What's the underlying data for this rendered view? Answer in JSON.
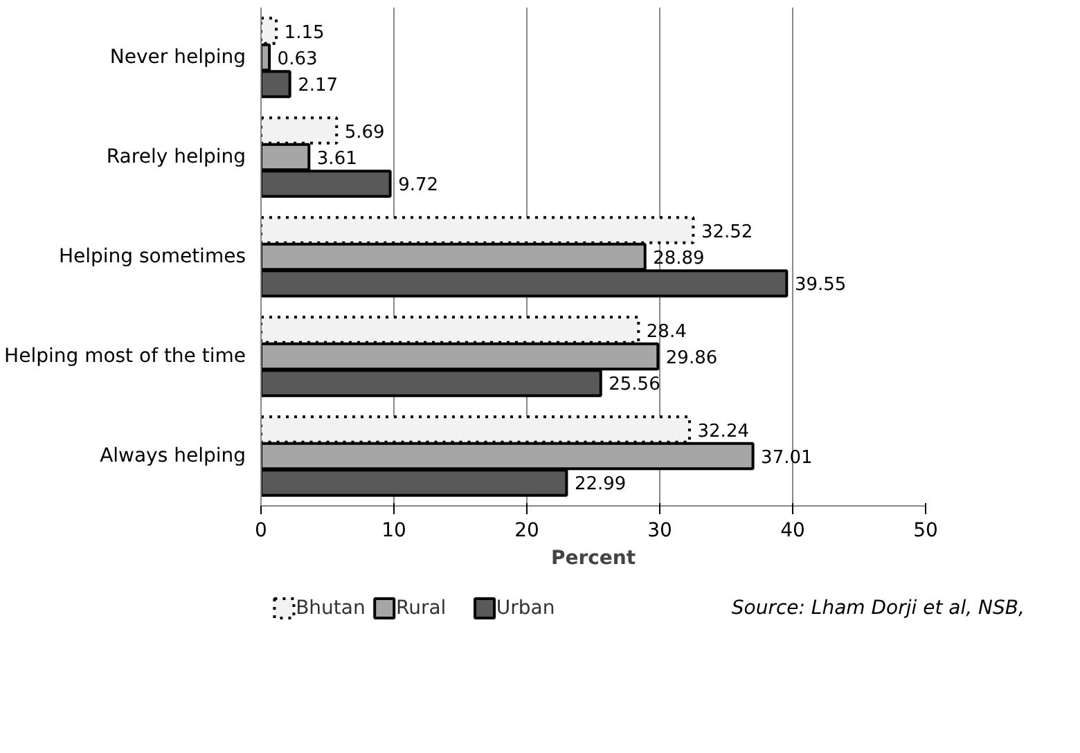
{
  "chart_data": {
    "type": "bar",
    "orientation": "horizontal",
    "xlabel": "Percent",
    "categories": [
      "Never helping",
      "Rarely helping",
      "Helping sometimes",
      "Helping most of the time",
      "Always helping"
    ],
    "series": [
      {
        "name": "Bhutan",
        "color": "#f2f2f2",
        "line_style": "dotted",
        "values": [
          1.15,
          5.69,
          32.52,
          28.4,
          32.24
        ]
      },
      {
        "name": "Rural",
        "color": "#a6a6a6",
        "line_style": "solid",
        "values": [
          0.63,
          3.61,
          28.89,
          29.86,
          37.01
        ]
      },
      {
        "name": "Urban",
        "color": "#595959",
        "line_style": "solid",
        "values": [
          2.17,
          9.72,
          39.55,
          25.56,
          22.99
        ]
      }
    ],
    "xlim": [
      0,
      50
    ],
    "xticks": [
      0,
      10,
      20,
      30,
      40,
      50
    ],
    "grid": "x",
    "legend": "bottom",
    "data_labels": true,
    "annotations": [
      "Source: Lham Dorji et al, NSB,"
    ]
  }
}
